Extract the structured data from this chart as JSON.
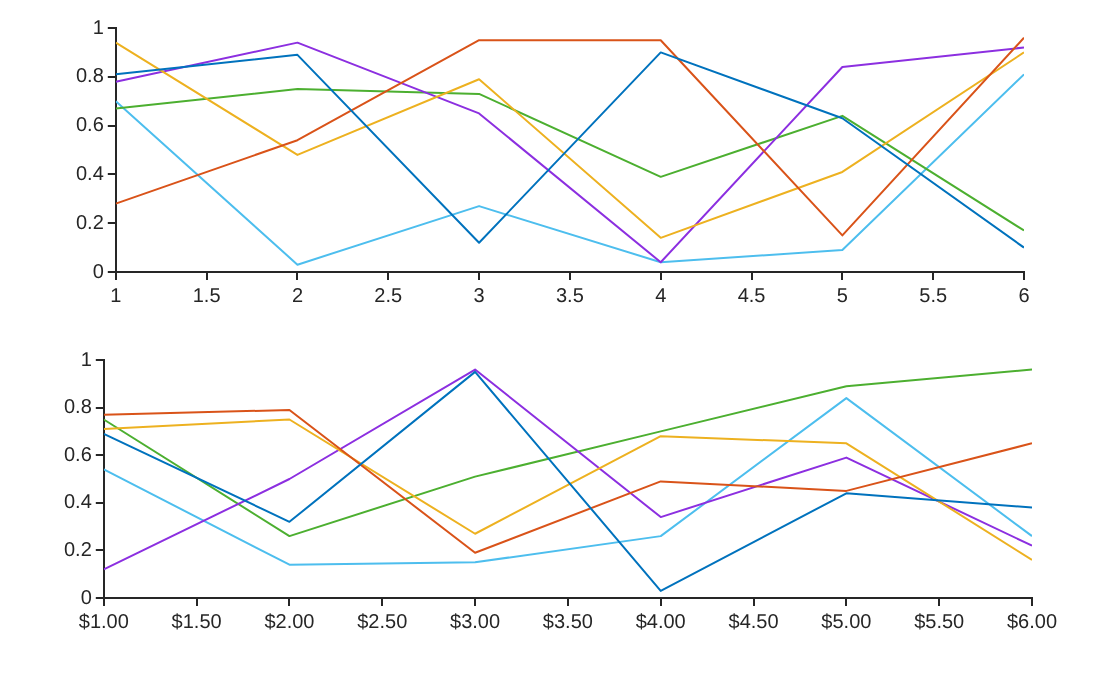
{
  "chart_data": [
    {
      "type": "line",
      "x": [
        1,
        2,
        3,
        4,
        5,
        6
      ],
      "xlim": [
        1,
        6
      ],
      "xticks": [
        1,
        1.5,
        2,
        2.5,
        3,
        3.5,
        4,
        4.5,
        5,
        5.5,
        6
      ],
      "ylim": [
        0,
        1
      ],
      "yticks": [
        0,
        0.2,
        0.4,
        0.6,
        0.8,
        1
      ],
      "grid": false,
      "legend": false,
      "marker": "none",
      "line_style": "solid",
      "series": [
        {
          "color": "#0072bd",
          "values": [
            0.81,
            0.89,
            0.12,
            0.9,
            0.63,
            0.1
          ]
        },
        {
          "color": "#d95319",
          "values": [
            0.28,
            0.54,
            0.95,
            0.95,
            0.15,
            0.96
          ]
        },
        {
          "color": "#edb120",
          "values": [
            0.94,
            0.48,
            0.79,
            0.14,
            0.41,
            0.9
          ]
        },
        {
          "color": "#8c2fe0",
          "values": [
            0.78,
            0.94,
            0.65,
            0.04,
            0.84,
            0.92
          ]
        },
        {
          "color": "#4caf30",
          "values": [
            0.67,
            0.75,
            0.73,
            0.39,
            0.64,
            0.17
          ]
        },
        {
          "color": "#4dbeee",
          "values": [
            0.7,
            0.03,
            0.27,
            0.04,
            0.09,
            0.81
          ]
        }
      ]
    },
    {
      "type": "line",
      "x": [
        1,
        2,
        3,
        4,
        5,
        6
      ],
      "xlim": [
        1,
        6
      ],
      "xticks": [
        {
          "value": 1,
          "label": "$1.00"
        },
        {
          "value": 1.5,
          "label": "$1.50"
        },
        {
          "value": 2,
          "label": "$2.00"
        },
        {
          "value": 2.5,
          "label": "$2.50"
        },
        {
          "value": 3,
          "label": "$3.00"
        },
        {
          "value": 3.5,
          "label": "$3.50"
        },
        {
          "value": 4,
          "label": "$4.00"
        },
        {
          "value": 4.5,
          "label": "$4.50"
        },
        {
          "value": 5,
          "label": "$5.00"
        },
        {
          "value": 5.5,
          "label": "$5.50"
        },
        {
          "value": 6,
          "label": "$6.00"
        }
      ],
      "ylim": [
        0,
        1
      ],
      "yticks": [
        0,
        0.2,
        0.4,
        0.6,
        0.8,
        1
      ],
      "grid": false,
      "legend": false,
      "marker": "none",
      "line_style": "solid",
      "series": [
        {
          "color": "#0072bd",
          "values": [
            0.69,
            0.32,
            0.95,
            0.03,
            0.44,
            0.38
          ]
        },
        {
          "color": "#d95319",
          "values": [
            0.77,
            0.79,
            0.19,
            0.49,
            0.45,
            0.65
          ]
        },
        {
          "color": "#edb120",
          "values": [
            0.71,
            0.75,
            0.27,
            0.68,
            0.65,
            0.16
          ]
        },
        {
          "color": "#8c2fe0",
          "values": [
            0.12,
            0.5,
            0.96,
            0.34,
            0.59,
            0.22
          ]
        },
        {
          "color": "#4caf30",
          "values": [
            0.75,
            0.26,
            0.51,
            0.7,
            0.89,
            0.96
          ]
        },
        {
          "color": "#4dbeee",
          "values": [
            0.54,
            0.14,
            0.15,
            0.26,
            0.84,
            0.26
          ]
        }
      ]
    }
  ]
}
